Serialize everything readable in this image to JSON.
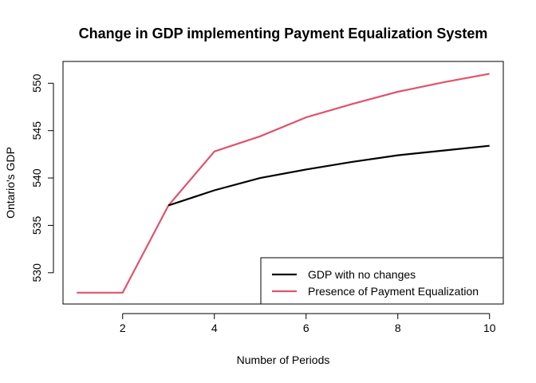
{
  "chart_data": {
    "type": "line",
    "title": "Change in GDP implementing Payment Equalization System",
    "xlabel": "Number of Periods",
    "ylabel": "Ontario's GDP",
    "xlim": [
      0.7,
      10.3
    ],
    "ylim": [
      526.7,
      552.3
    ],
    "x_ticks": [
      2,
      4,
      6,
      8,
      10
    ],
    "y_ticks": [
      530,
      535,
      540,
      545,
      550
    ],
    "grid": false,
    "legend_position": "bottom-right",
    "series": [
      {
        "name": "GDP with no changes",
        "color": "#000000",
        "x": [
          3,
          4,
          5,
          6,
          7,
          8,
          9,
          10
        ],
        "y": [
          537.1,
          538.7,
          540.0,
          540.9,
          541.7,
          542.4,
          542.9,
          543.4
        ]
      },
      {
        "name": "Presence of Payment Equalization",
        "color": "#DF536B",
        "x": [
          1,
          2,
          3,
          4,
          5,
          6,
          7,
          8,
          9,
          10
        ],
        "y": [
          527.9,
          527.9,
          537.1,
          542.8,
          544.4,
          546.4,
          547.8,
          549.1,
          550.1,
          551.0
        ]
      }
    ]
  }
}
